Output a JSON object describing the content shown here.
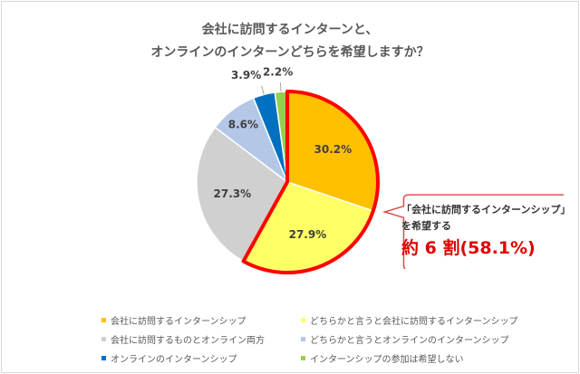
{
  "chart_data": {
    "type": "pie",
    "title_lines": [
      "会社に訪問するインターンと、",
      "オンラインのインターンどちらを希望しますか？"
    ],
    "start_angle": "top",
    "direction": "clockwise",
    "slices": [
      {
        "label": "会社に訪問するインターンシップ",
        "value": 30.2,
        "display": "30.2%",
        "color": "#FFC000"
      },
      {
        "label": "どちらかと言うと会社に訪問するインターンシップ",
        "value": 27.9,
        "display": "27.9%",
        "color": "#FFFF66"
      },
      {
        "label": "会社に訪問するものとオンライン両方",
        "value": 27.3,
        "display": "27.3%",
        "color": "#D0D0D0"
      },
      {
        "label": "どちらかと言うとオンラインのインターンシップ",
        "value": 8.6,
        "display": "8.6%",
        "color": "#B4C7E7"
      },
      {
        "label": "オンラインのインターンシップ",
        "value": 3.9,
        "display": "3.9%",
        "color": "#0070C0"
      },
      {
        "label": "インターンシップの参加は希望しない",
        "value": 2.2,
        "display": "2.2%",
        "color": "#92D050"
      }
    ],
    "highlight": {
      "slices": [
        0,
        1
      ],
      "color": "#FF0000"
    },
    "legend_placement": "bottom",
    "annotation": {
      "line1": "「会社に訪問するインターンシップ」",
      "line2": "を希望する",
      "line3": "約 6 割(58.1%)"
    }
  }
}
